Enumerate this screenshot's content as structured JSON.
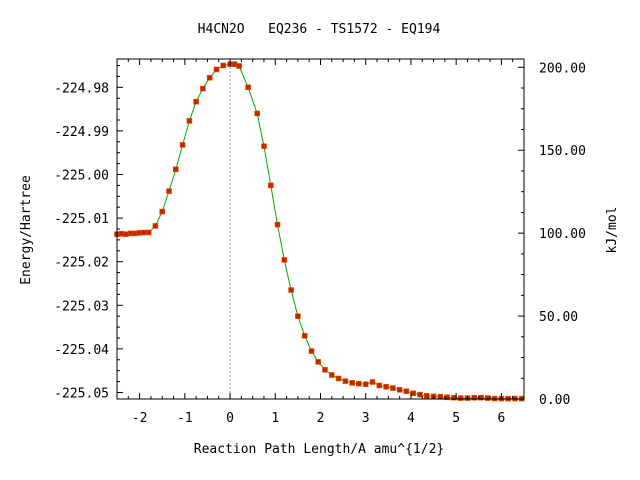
{
  "chart_data": {
    "type": "line",
    "title": "H4CN2O   EQ236 - TS1572 - EQ194",
    "xlabel": "Reaction Path Length/A amu^{1/2}",
    "ylabel": "Energy/Hartree",
    "y2label": "kJ/mol",
    "xlim": [
      -2.5,
      6.5
    ],
    "ylim": [
      -225.0515,
      -224.9735
    ],
    "y2lim": [
      0,
      205
    ],
    "x_ticks": [
      -2,
      -1,
      0,
      1,
      2,
      3,
      4,
      5,
      6
    ],
    "x_tick_labels": [
      "-2",
      "-1",
      "0",
      "1",
      "2",
      "3",
      "4",
      "5",
      "6"
    ],
    "y_ticks": [
      -224.98,
      -224.99,
      -225.0,
      -225.01,
      -225.02,
      -225.03,
      -225.04,
      -225.05
    ],
    "y_tick_labels": [
      "-224.98",
      "-224.99",
      "-225.00",
      "-225.01",
      "-225.02",
      "-225.03",
      "-225.04",
      "-225.05"
    ],
    "y2_ticks": [
      0,
      50,
      100,
      150,
      200
    ],
    "y2_tick_labels": [
      "0.00",
      "50.00",
      "100.00",
      "150.00",
      "200.00"
    ],
    "ts_marker_x": 0,
    "line_color": "#00aa00",
    "marker_color": "#cc2200",
    "marker_edge_color": "#cc6600",
    "ts_line_color": "#999999",
    "series": [
      {
        "x": [
          -2.5,
          -2.4,
          -2.3,
          -2.2,
          -2.1,
          -2.0,
          -1.9,
          -1.8,
          -1.65,
          -1.5,
          -1.35,
          -1.2,
          -1.05,
          -0.9,
          -0.75,
          -0.6,
          -0.45,
          -0.3,
          -0.15,
          0.0,
          0.1,
          0.2,
          0.4,
          0.6,
          0.75,
          0.9,
          1.05,
          1.2,
          1.35,
          1.5,
          1.65,
          1.8,
          1.95,
          2.1,
          2.25,
          2.4,
          2.55,
          2.7,
          2.85,
          3.0,
          3.15,
          3.3,
          3.45,
          3.6,
          3.75,
          3.9,
          4.05,
          4.2,
          4.35,
          4.5,
          4.65,
          4.8,
          4.95,
          5.1,
          5.25,
          5.4,
          5.55,
          5.7,
          5.85,
          6.0,
          6.15,
          6.3,
          6.45
        ],
        "y": [
          -225.0137,
          -225.0136,
          -225.0137,
          -225.0135,
          -225.0135,
          -225.0134,
          -225.0133,
          -225.0133,
          -225.0118,
          -225.0085,
          -225.0038,
          -224.9988,
          -224.9932,
          -224.9877,
          -224.9833,
          -224.9803,
          -224.9778,
          -224.9759,
          -224.975,
          -224.9747,
          -224.9747,
          -224.9751,
          -224.98,
          -224.986,
          -224.9935,
          -225.0025,
          -225.0115,
          -225.0196,
          -225.0265,
          -225.0325,
          -225.037,
          -225.0405,
          -225.043,
          -225.0448,
          -225.046,
          -225.0468,
          -225.0474,
          -225.0478,
          -225.048,
          -225.0481,
          -225.0476,
          -225.0484,
          -225.0487,
          -225.049,
          -225.0494,
          -225.0497,
          -225.0502,
          -225.0505,
          -225.0508,
          -225.0509,
          -225.051,
          -225.0511,
          -225.0512,
          -225.0513,
          -225.0513,
          -225.0512,
          -225.0512,
          -225.0513,
          -225.0514,
          -225.0514,
          -225.0514,
          -225.0514,
          -225.0514
        ]
      }
    ]
  }
}
